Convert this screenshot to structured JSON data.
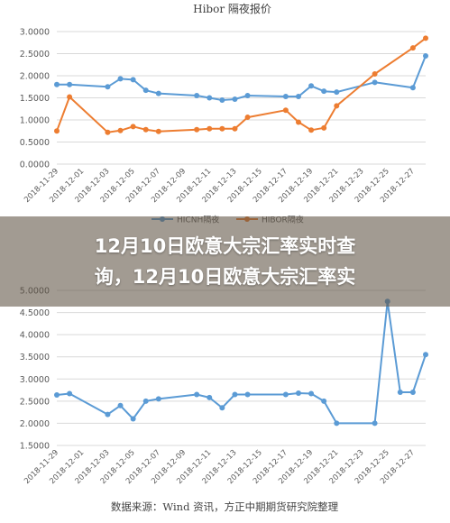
{
  "banner": {
    "line1": "12月10日欧意大宗汇率实时查",
    "line2": "询，12月10日欧意大宗汇率实"
  },
  "source_note": "数据来源：Wind 资讯，方正中期期货研究院整理",
  "colors": {
    "hicnh": "#5b9bd5",
    "hibor": "#ed7d31",
    "grid": "#d9d9d9",
    "axis_text": "#595959"
  },
  "chart_data": [
    {
      "type": "line",
      "title": "Hibor 隔夜报价",
      "categories": [
        "2018-11-29",
        "2018-12-01",
        "2018-12-03",
        "2018-12-05",
        "2018-12-07",
        "2018-12-09",
        "2018-12-11",
        "2018-12-13",
        "2018-12-15",
        "2018-12-17",
        "2018-12-19",
        "2018-12-21",
        "2018-12-23",
        "2018-12-25",
        "2018-12-27"
      ],
      "ylim": [
        0,
        3
      ],
      "yticks": [
        "0.0000",
        "0.5000",
        "1.0000",
        "1.5000",
        "2.0000",
        "2.5000",
        "3.0000"
      ],
      "legend": [
        "HICNH隔夜",
        "HIBOR隔夜"
      ],
      "legend_position": "bottom",
      "series": [
        {
          "name": "HICNH隔夜",
          "points": [
            [
              "2018-11-29",
              1.8
            ],
            [
              "2018-11-30",
              1.8
            ],
            [
              "2018-12-03",
              1.75
            ],
            [
              "2018-12-04",
              1.93
            ],
            [
              "2018-12-05",
              1.91
            ],
            [
              "2018-12-06",
              1.67
            ],
            [
              "2018-12-07",
              1.6
            ],
            [
              "2018-12-10",
              1.55
            ],
            [
              "2018-12-11",
              1.5
            ],
            [
              "2018-12-12",
              1.45
            ],
            [
              "2018-12-13",
              1.47
            ],
            [
              "2018-12-14",
              1.55
            ],
            [
              "2018-12-17",
              1.53
            ],
            [
              "2018-12-18",
              1.53
            ],
            [
              "2018-12-19",
              1.77
            ],
            [
              "2018-12-20",
              1.65
            ],
            [
              "2018-12-21",
              1.63
            ],
            [
              "2018-12-24",
              1.85
            ],
            [
              "2018-12-27",
              1.73
            ],
            [
              "2018-12-28",
              2.45
            ]
          ]
        },
        {
          "name": "HIBOR隔夜",
          "points": [
            [
              "2018-11-29",
              0.75
            ],
            [
              "2018-11-30",
              1.52
            ],
            [
              "2018-12-03",
              0.72
            ],
            [
              "2018-12-04",
              0.76
            ],
            [
              "2018-12-05",
              0.85
            ],
            [
              "2018-12-06",
              0.78
            ],
            [
              "2018-12-07",
              0.74
            ],
            [
              "2018-12-10",
              0.78
            ],
            [
              "2018-12-11",
              0.8
            ],
            [
              "2018-12-12",
              0.8
            ],
            [
              "2018-12-13",
              0.8
            ],
            [
              "2018-12-14",
              1.06
            ],
            [
              "2018-12-17",
              1.22
            ],
            [
              "2018-12-18",
              0.95
            ],
            [
              "2018-12-19",
              0.77
            ],
            [
              "2018-12-20",
              0.82
            ],
            [
              "2018-12-21",
              1.32
            ],
            [
              "2018-12-24",
              2.04
            ],
            [
              "2018-12-27",
              2.63
            ],
            [
              "2018-12-28",
              2.85
            ]
          ]
        }
      ]
    },
    {
      "type": "line",
      "categories": [
        "2018-11-29",
        "2018-12-01",
        "2018-12-03",
        "2018-12-05",
        "2018-12-07",
        "2018-12-09",
        "2018-12-11",
        "2018-12-13",
        "2018-12-15",
        "2018-12-17",
        "2018-12-19",
        "2018-12-21",
        "2018-12-23",
        "2018-12-25",
        "2018-12-27"
      ],
      "ylim": [
        1.5,
        5
      ],
      "yticks": [
        "1.5000",
        "2.0000",
        "2.5000",
        "3.0000",
        "3.5000",
        "4.0000",
        "4.5000",
        "5.0000"
      ],
      "series": [
        {
          "points": [
            [
              "2018-11-29",
              2.64
            ],
            [
              "2018-11-30",
              2.67
            ],
            [
              "2018-12-03",
              2.2
            ],
            [
              "2018-12-04",
              2.4
            ],
            [
              "2018-12-05",
              2.1
            ],
            [
              "2018-12-06",
              2.5
            ],
            [
              "2018-12-07",
              2.55
            ],
            [
              "2018-12-10",
              2.65
            ],
            [
              "2018-12-11",
              2.58
            ],
            [
              "2018-12-12",
              2.35
            ],
            [
              "2018-12-13",
              2.65
            ],
            [
              "2018-12-14",
              2.65
            ],
            [
              "2018-12-17",
              2.65
            ],
            [
              "2018-12-18",
              2.68
            ],
            [
              "2018-12-19",
              2.67
            ],
            [
              "2018-12-20",
              2.5
            ],
            [
              "2018-12-21",
              2.0
            ],
            [
              "2018-12-24",
              2.0
            ],
            [
              "2018-12-25",
              4.75
            ],
            [
              "2018-12-26",
              2.7
            ],
            [
              "2018-12-27",
              2.7
            ],
            [
              "2018-12-28",
              3.55
            ]
          ]
        }
      ]
    }
  ]
}
